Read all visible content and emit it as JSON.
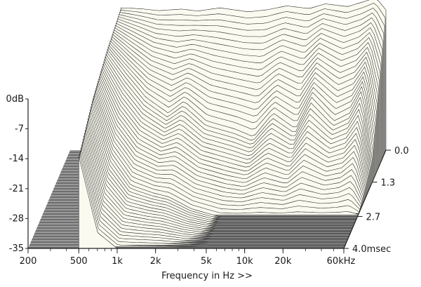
{
  "chart_data": {
    "type": "waterfall-3d",
    "title": "",
    "xlabel": "Frequency in Hz >>",
    "ylabel": "",
    "zlabel": "",
    "x_ticks": [
      "200",
      "500",
      "1k",
      "2k",
      "5k",
      "10k",
      "20k",
      "60kHz"
    ],
    "x_tick_values": [
      200,
      500,
      1000,
      2000,
      5000,
      10000,
      20000,
      60000
    ],
    "xlim": [
      200,
      60000
    ],
    "x_scale": "log",
    "y_ticks": [
      "0dB",
      "-7",
      "-14",
      "-21",
      "-28",
      "-35"
    ],
    "y_tick_values": [
      0,
      -7,
      -14,
      -21,
      -28,
      -35
    ],
    "ylim": [
      -35,
      0
    ],
    "time_ticks": [
      "0.0",
      "1.3",
      "2.7",
      "4.0msec"
    ],
    "time_tick_values": [
      0.0,
      1.3,
      2.7,
      4.0
    ],
    "time_range_ms": [
      0.0,
      4.0
    ],
    "slice_count": 60,
    "series": [
      {
        "name": "",
        "time_ms": 0.0,
        "x": [
          500,
          700,
          1000,
          1500,
          2000,
          3000,
          5000,
          7000,
          10000,
          15000,
          20000,
          30000,
          40000,
          50000,
          60000
        ],
        "values": [
          0.5,
          0.3,
          -0.2,
          0.2,
          -0.3,
          0.5,
          -0.5,
          0.0,
          1.0,
          0.3,
          1.5,
          0.8,
          2.0,
          3.0,
          0.0
        ]
      },
      {
        "name": "",
        "time_ms": 1.3,
        "x": [
          500,
          700,
          1000,
          1500,
          2000,
          3000,
          5000,
          7000,
          10000,
          15000,
          20000,
          30000,
          40000,
          50000,
          60000
        ],
        "values": [
          -2.0,
          -8.0,
          -14.0,
          -18.0,
          -15.0,
          -20.0,
          -22.0,
          -24.0,
          -18.0,
          -22.0,
          -14.0,
          -20.0,
          -18.0,
          -12.0,
          -30.0
        ]
      },
      {
        "name": "",
        "time_ms": 2.7,
        "x": [
          500,
          700,
          1000,
          1500,
          2000,
          3000,
          5000,
          7000,
          10000,
          15000,
          20000,
          30000,
          40000,
          50000,
          60000
        ],
        "values": [
          -6.0,
          -20.0,
          -27.0,
          -29.0,
          -30.0,
          -33.0,
          -35.0,
          -35.0,
          -35.0,
          -35.0,
          -35.0,
          -35.0,
          -35.0,
          -35.0,
          -35.0
        ]
      },
      {
        "name": "",
        "time_ms": 4.0,
        "x": [
          500,
          700,
          1000,
          1500,
          2000,
          3000,
          5000,
          7000,
          10000,
          15000,
          20000,
          30000,
          40000,
          50000,
          60000
        ],
        "values": [
          -12.0,
          -31.0,
          -35.0,
          -35.0,
          -35.0,
          -35.0,
          -35.0,
          -35.0,
          -35.0,
          -35.0,
          -35.0,
          -35.0,
          -35.0,
          -35.0,
          -35.0
        ]
      }
    ],
    "colors": {
      "ribbon_fill": "#fbfaf0",
      "ribbon_line": "#1c1c1c",
      "floor_light": "#9a9a9a",
      "floor_dark": "#6e6e6e",
      "axis": "#222222"
    }
  }
}
